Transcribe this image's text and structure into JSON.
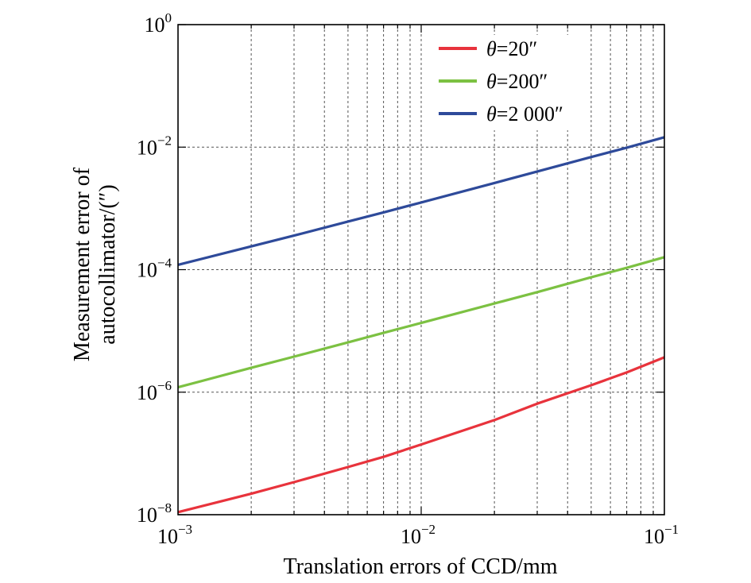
{
  "chart_data": {
    "type": "line",
    "xlabel": "Translation errors of CCD/mm",
    "ylabel_line1": "Measurement error of",
    "ylabel_line2": "autocollimator/(″)",
    "x_scale": "log",
    "y_scale": "log",
    "xlim": [
      0.001,
      0.1
    ],
    "ylim": [
      1e-08,
      1
    ],
    "x_ticks": [
      {
        "base": "10",
        "exp": "−3",
        "value": 0.001
      },
      {
        "base": "10",
        "exp": "−2",
        "value": 0.01
      },
      {
        "base": "10",
        "exp": "−1",
        "value": 0.1
      }
    ],
    "y_ticks": [
      {
        "base": "10",
        "exp": "0",
        "value": 1
      },
      {
        "base": "10",
        "exp": "−2",
        "value": 0.01
      },
      {
        "base": "10",
        "exp": "−4",
        "value": 0.0001
      },
      {
        "base": "10",
        "exp": "−6",
        "value": 1e-06
      },
      {
        "base": "10",
        "exp": "−8",
        "value": 1e-08
      }
    ],
    "grid": true,
    "legend_position": "top-right",
    "series": [
      {
        "name": "θ=20″",
        "name_symbol": "θ",
        "name_rest": "=20″",
        "color": "#e8333c",
        "x": [
          0.001,
          0.002,
          0.003,
          0.005,
          0.007,
          0.01,
          0.02,
          0.03,
          0.05,
          0.07,
          0.1
        ],
        "y": [
          1.1e-08,
          2.2e-08,
          3.4e-08,
          6e-08,
          8.8e-08,
          1.4e-07,
          3.5e-07,
          6.5e-07,
          1.3e-06,
          2.1e-06,
          3.7e-06
        ]
      },
      {
        "name": "θ=200″",
        "name_symbol": "θ",
        "name_rest": "=200″",
        "color": "#7cc142",
        "x": [
          0.001,
          0.002,
          0.003,
          0.005,
          0.007,
          0.01,
          0.02,
          0.03,
          0.05,
          0.07,
          0.1
        ],
        "y": [
          1.2e-06,
          2.5e-06,
          3.8e-06,
          6.5e-06,
          9.3e-06,
          1.35e-05,
          2.8e-05,
          4.3e-05,
          7.5e-05,
          0.000107,
          0.00016
        ]
      },
      {
        "name": "θ=2 000″",
        "name_symbol": "θ",
        "name_rest": "=2 000″",
        "color": "#2e4a9a",
        "x": [
          0.001,
          0.002,
          0.003,
          0.005,
          0.007,
          0.01,
          0.02,
          0.03,
          0.05,
          0.07,
          0.1
        ],
        "y": [
          0.00012,
          0.00024,
          0.00036,
          0.00061,
          0.00086,
          0.00125,
          0.0026,
          0.004,
          0.0069,
          0.0098,
          0.0145
        ]
      }
    ]
  }
}
